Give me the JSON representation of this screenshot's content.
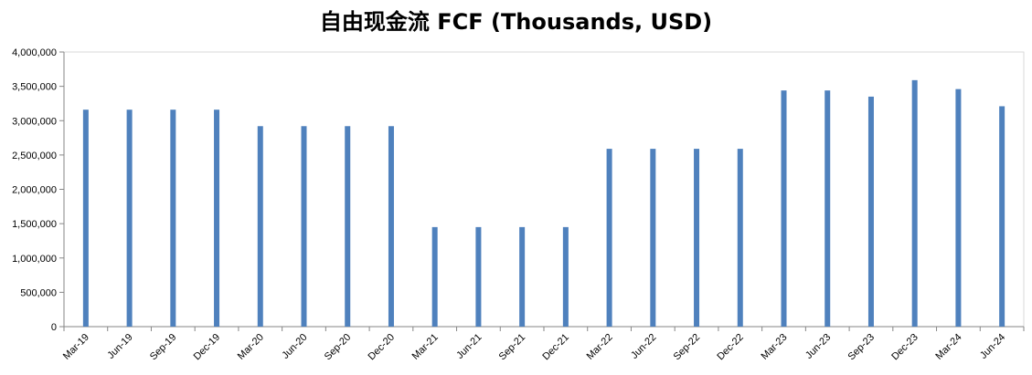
{
  "chart_data": {
    "type": "bar",
    "title": "自由现金流 FCF (Thousands, USD)",
    "xlabel": "",
    "ylabel": "",
    "ylim": [
      0,
      4000000
    ],
    "yticks": [
      0,
      500000,
      1000000,
      1500000,
      2000000,
      2500000,
      3000000,
      3500000,
      4000000
    ],
    "ytick_labels": [
      "0",
      "500,000",
      "1,000,000",
      "1,500,000",
      "2,000,000",
      "2,500,000",
      "3,000,000",
      "3,500,000",
      "4,000,000"
    ],
    "grid": false,
    "legend": "none",
    "bar_color": "#4F81BD",
    "categories": [
      "Mar-19",
      "Jun-19",
      "Sep-19",
      "Dec-19",
      "Mar-20",
      "Jun-20",
      "Sep-20",
      "Dec-20",
      "Mar-21",
      "Jun-21",
      "Sep-21",
      "Dec-21",
      "Mar-22",
      "Jun-22",
      "Sep-22",
      "Dec-22",
      "Mar-23",
      "Jun-23",
      "Sep-23",
      "Dec-23",
      "Mar-24",
      "Jun-24"
    ],
    "values": [
      3160000,
      3160000,
      3160000,
      3160000,
      2920000,
      2920000,
      2920000,
      2920000,
      1450000,
      1450000,
      1450000,
      1450000,
      2590000,
      2590000,
      2590000,
      2590000,
      3440000,
      3440000,
      3350000,
      3590000,
      3460000,
      3210000
    ]
  }
}
